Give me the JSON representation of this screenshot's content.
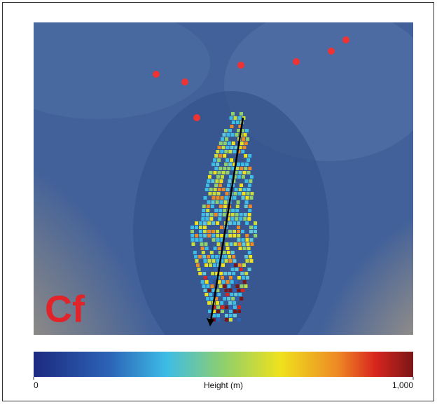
{
  "panel": {
    "label": "Cf"
  },
  "colorbar": {
    "label": "Height (m)",
    "lim": [
      0,
      1000
    ],
    "ticks": [
      0,
      {
        "value": 1000,
        "label": "1,000"
      }
    ]
  }
}
